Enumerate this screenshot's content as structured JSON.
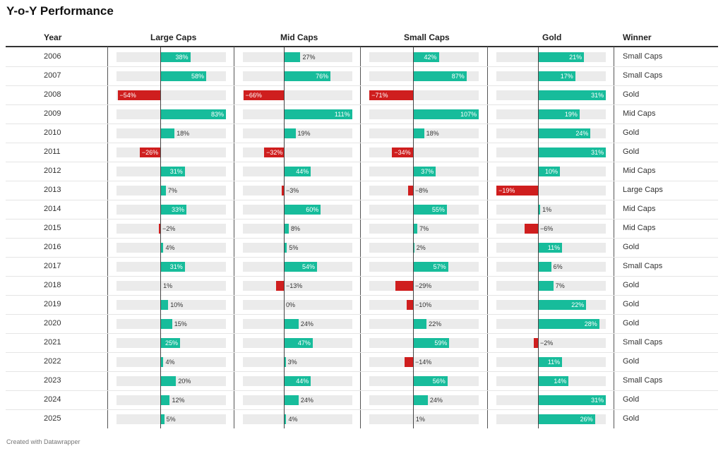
{
  "title": "Y-o-Y Performance",
  "footer": "Created with Datawrapper",
  "columns": {
    "year": "Year",
    "large": "Large Caps",
    "mid": "Mid Caps",
    "small": "Small Caps",
    "gold": "Gold",
    "winner": "Winner"
  },
  "colors": {
    "positive": "#17bc9b",
    "negative": "#cf1e1e",
    "track": "#ebebeb"
  },
  "chart_data": {
    "type": "table",
    "title": "Y-o-Y Performance",
    "categories": [
      "2006",
      "2007",
      "2008",
      "2009",
      "2010",
      "2011",
      "2012",
      "2013",
      "2014",
      "2015",
      "2016",
      "2017",
      "2018",
      "2019",
      "2020",
      "2021",
      "2022",
      "2023",
      "2024",
      "2025"
    ],
    "series": [
      {
        "name": "Large Caps",
        "values": [
          38,
          58,
          -54,
          83,
          18,
          -26,
          31,
          7,
          33,
          -2,
          4,
          31,
          1,
          10,
          15,
          25,
          4,
          20,
          12,
          5
        ],
        "labels": [
          "38%",
          "58%",
          "−54%",
          "83%",
          "18%",
          "−26%",
          "31%",
          "7%",
          "33%",
          "−2%",
          "4%",
          "31%",
          "1%",
          "10%",
          "15%",
          "25%",
          "4%",
          "20%",
          "12%",
          "5%"
        ]
      },
      {
        "name": "Mid Caps",
        "values": [
          27,
          76,
          -66,
          111,
          19,
          -32,
          44,
          -3,
          60,
          8,
          5,
          54,
          -13,
          0,
          24,
          47,
          3,
          44,
          24,
          4
        ],
        "labels": [
          "27%",
          "76%",
          "−66%",
          "111%",
          "19%",
          "−32%",
          "44%",
          "−3%",
          "60%",
          "8%",
          "5%",
          "54%",
          "−13%",
          "0%",
          "24%",
          "47%",
          "3%",
          "44%",
          "24%",
          "4%"
        ]
      },
      {
        "name": "Small Caps",
        "values": [
          42,
          87,
          -71,
          107,
          18,
          -34,
          37,
          -8,
          55,
          7,
          2,
          57,
          -29,
          -10,
          22,
          59,
          -14,
          56,
          24,
          1
        ],
        "labels": [
          "42%",
          "87%",
          "−71%",
          "107%",
          "18%",
          "−34%",
          "37%",
          "−8%",
          "55%",
          "7%",
          "2%",
          "57%",
          "−29%",
          "−10%",
          "22%",
          "59%",
          "−14%",
          "56%",
          "24%",
          "1%"
        ]
      },
      {
        "name": "Gold",
        "values": [
          21,
          17,
          31,
          19,
          24,
          31,
          10,
          -19,
          1,
          -6,
          11,
          6,
          7,
          22,
          28,
          -2,
          11,
          14,
          31,
          26
        ],
        "labels": [
          "21%",
          "17%",
          "31%",
          "19%",
          "24%",
          "31%",
          "10%",
          "−19%",
          "1%",
          "−6%",
          "11%",
          "6%",
          "7%",
          "22%",
          "28%",
          "−2%",
          "11%",
          "14%",
          "31%",
          "26%"
        ]
      }
    ],
    "winners": [
      "Small Caps",
      "Small Caps",
      "Gold",
      "Mid Caps",
      "Gold",
      "Gold",
      "Mid Caps",
      "Large Caps",
      "Mid Caps",
      "Mid Caps",
      "Gold",
      "Small Caps",
      "Gold",
      "Gold",
      "Gold",
      "Small Caps",
      "Gold",
      "Small Caps",
      "Gold",
      "Gold"
    ]
  }
}
